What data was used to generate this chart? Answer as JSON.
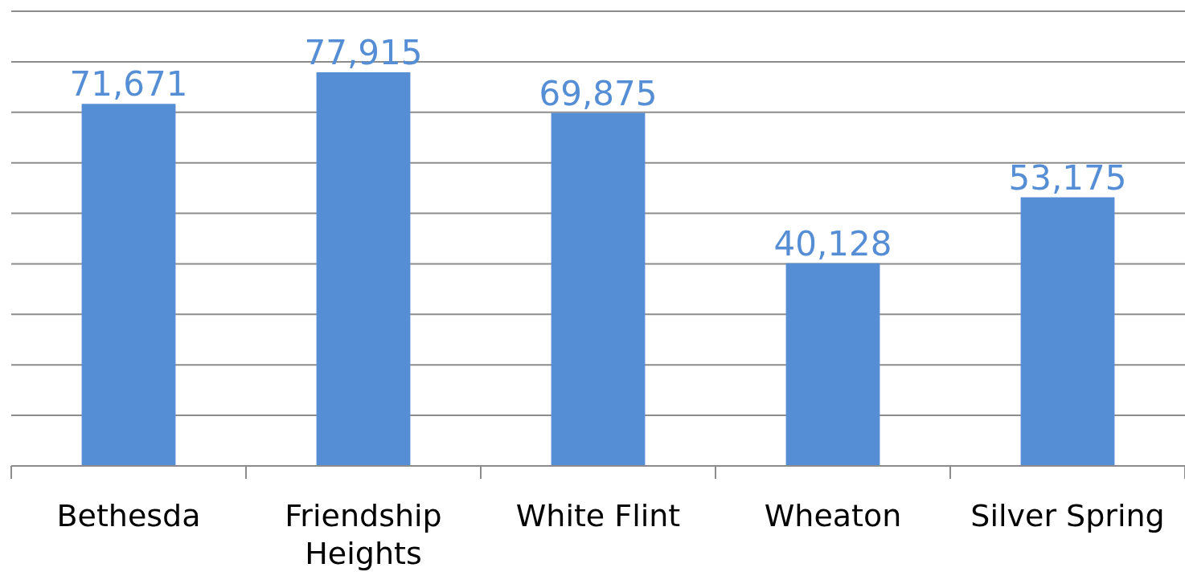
{
  "chart_data": {
    "type": "bar",
    "categories": [
      "Bethesda",
      "Friendship Heights",
      "White Flint",
      "Wheaton",
      "Silver Spring"
    ],
    "values": [
      71671,
      77915,
      69875,
      40128,
      53175
    ],
    "value_labels": [
      "71,671",
      "77,915",
      "69,875",
      "40,128",
      "53,175"
    ],
    "color": "#558ed5",
    "grid": "y",
    "tick_labels": "x"
  }
}
